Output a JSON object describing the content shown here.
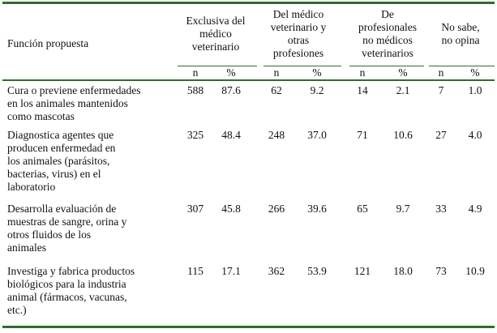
{
  "header": {
    "funcion": "Función propuesta",
    "groups": [
      "Exclusiva del\nmédico\nveterinario",
      "Del médico\nveterinario y\notras\nprofesiones",
      "De\nprofesionales\nno médicos\nveterinarios",
      "No sabe,\nno opina"
    ],
    "n": "n",
    "pct": "%"
  },
  "rows": [
    {
      "label": "Cura o previene enfermedades\n   en los animales mantenidos\n   como mascotas",
      "values": [
        "588",
        "87.6",
        "62",
        "9.2",
        "14",
        "2.1",
        "7",
        "1.0"
      ]
    },
    {
      "label": "Diagnostica agentes que\n   producen enfermedad en\n   los animales (parásitos,\n   bacterias, virus) en el\n   laboratorio",
      "values": [
        "325",
        "48.4",
        "248",
        "37.0",
        "71",
        "10.6",
        "27",
        "4.0"
      ]
    },
    {
      "label": "Desarrolla evaluación de\n   muestras de sangre, orina y\n   otros fluidos de los\n   animales",
      "values": [
        "307",
        "45.8",
        "266",
        "39.6",
        "65",
        "9.7",
        "33",
        "4.9"
      ]
    },
    {
      "label": "Investiga y fabrica productos\n   biológicos para la industria\n   animal (fármacos, vacunas,\n   etc.)",
      "values": [
        "115",
        "17.1",
        "362",
        "53.9",
        "121",
        "18.0",
        "73",
        "10.9"
      ]
    }
  ],
  "colors": {
    "rule": "#2f6d2f"
  }
}
